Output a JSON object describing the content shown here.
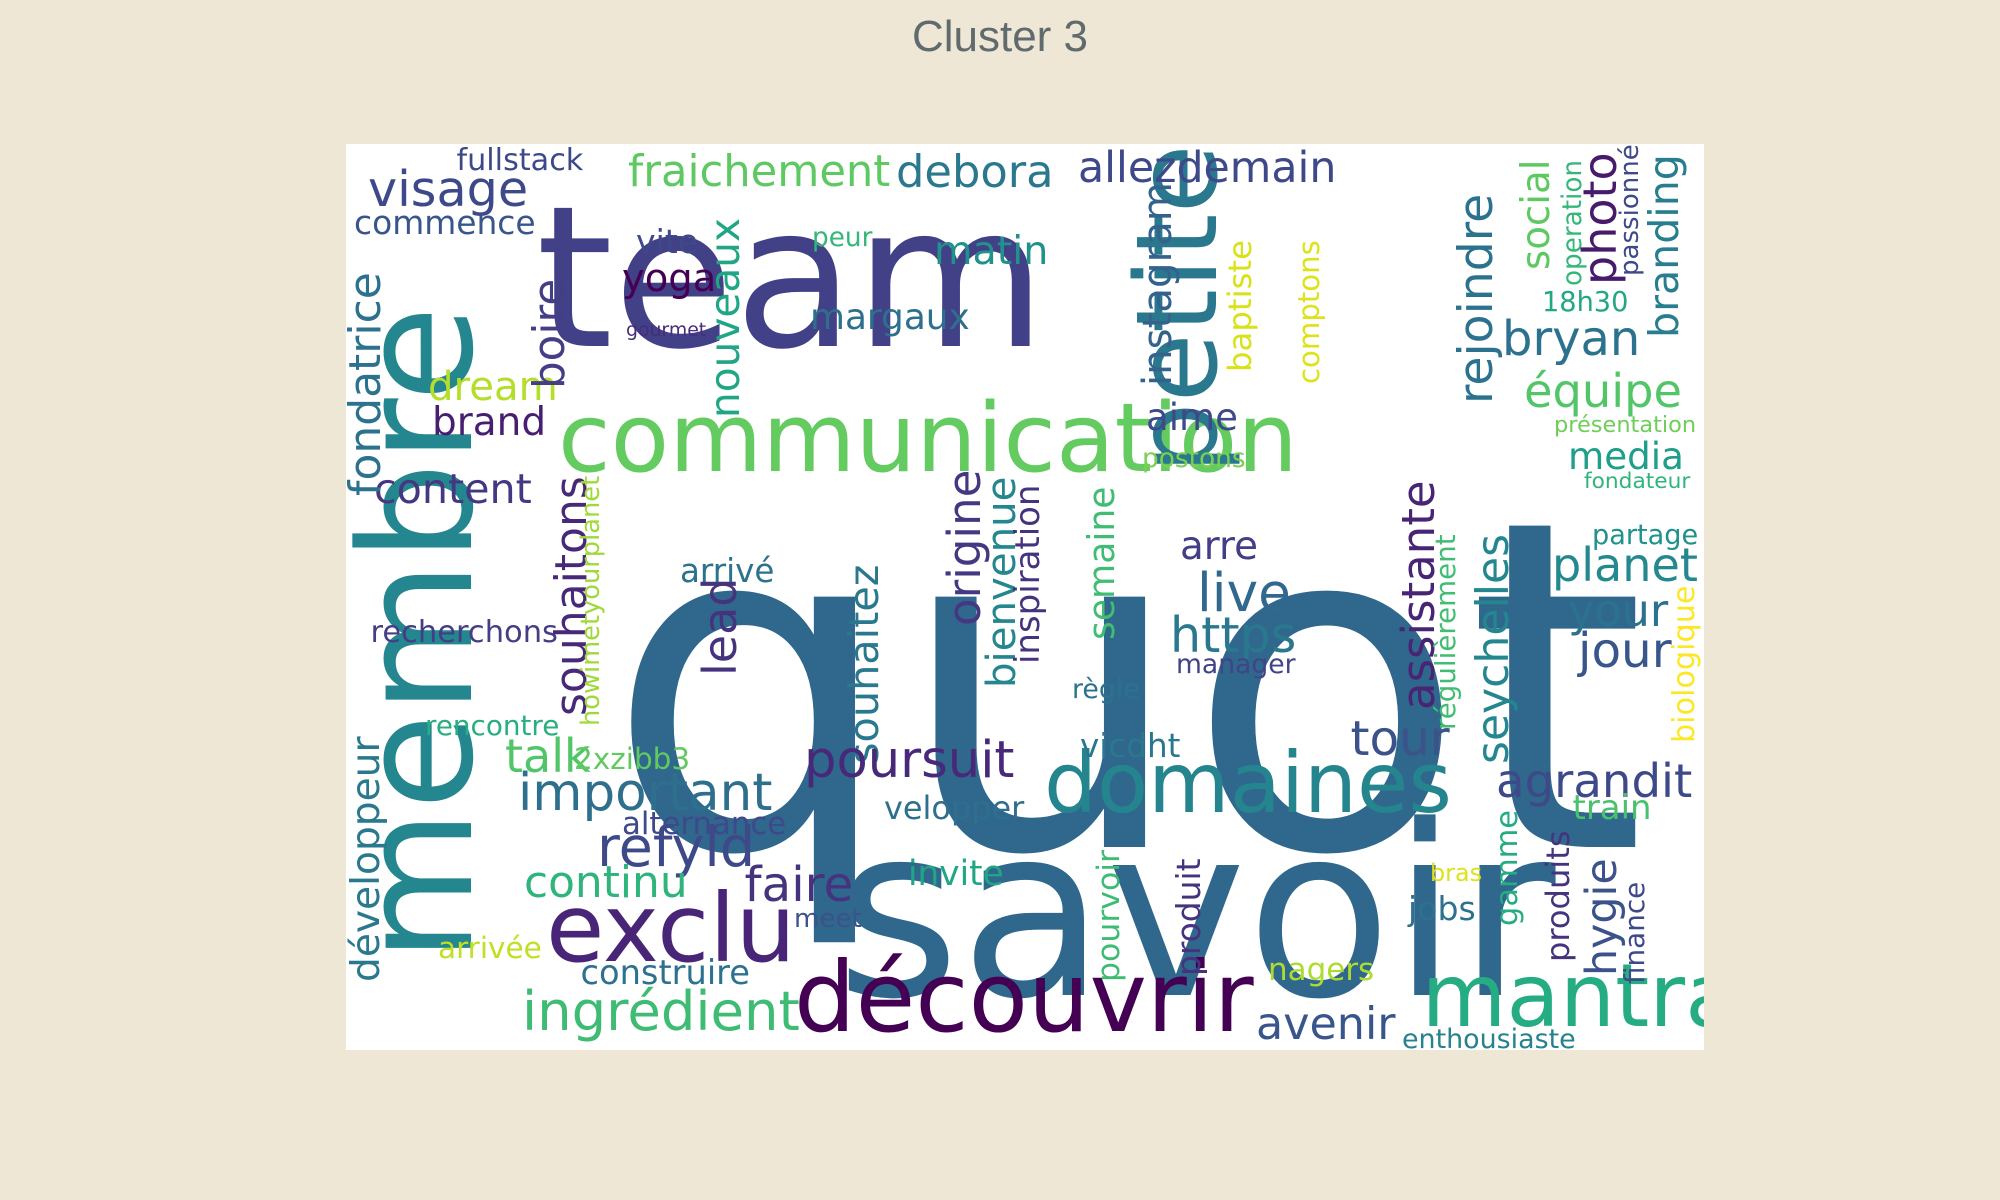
{
  "title": "Cluster 3",
  "palette": "viridis",
  "words": [
    {
      "text": "quot",
      "color": "#30678d"
    },
    {
      "text": "team",
      "color": "#424086"
    },
    {
      "text": "savoir",
      "color": "#30678d"
    },
    {
      "text": "membre",
      "color": "#24868e"
    },
    {
      "text": "communication",
      "color": "#63cb5f"
    },
    {
      "text": "petite",
      "color": "#2a788e"
    },
    {
      "text": "domaines",
      "color": "#25858e"
    },
    {
      "text": "découvrir",
      "color": "#440154"
    },
    {
      "text": "mantra",
      "color": "#25ac82"
    },
    {
      "text": "exclu",
      "color": "#482576"
    },
    {
      "text": "important",
      "color": "#2e6f8e"
    },
    {
      "text": "ingrédient",
      "color": "#3fbc73"
    },
    {
      "text": "fraichement",
      "color": "#5ec962"
    },
    {
      "text": "debora",
      "color": "#2a788e"
    },
    {
      "text": "allezdemain",
      "color": "#3e4989"
    },
    {
      "text": "visage",
      "color": "#3e4989"
    },
    {
      "text": "commence",
      "color": "#39568c"
    },
    {
      "text": "fullstack",
      "color": "#3e4989"
    },
    {
      "text": "vite",
      "color": "#3e4989"
    },
    {
      "text": "peur",
      "color": "#35b779"
    },
    {
      "text": "matin",
      "color": "#21918c"
    },
    {
      "text": "yoga",
      "color": "#440154"
    },
    {
      "text": "margaux",
      "color": "#2e6f8e"
    },
    {
      "text": "gourmet",
      "color": "#472d7b"
    },
    {
      "text": "dream",
      "color": "#b5de2b"
    },
    {
      "text": "brand",
      "color": "#481f70"
    },
    {
      "text": "content",
      "color": "#453781"
    },
    {
      "text": "instagram",
      "color": "#33638d"
    },
    {
      "text": "aime",
      "color": "#3e4989"
    },
    {
      "text": "postons",
      "color": "#7ad151"
    },
    {
      "text": "baptiste",
      "color": "#d8e219"
    },
    {
      "text": "comptons",
      "color": "#dde318"
    },
    {
      "text": "rejoindre",
      "color": "#2c728e"
    },
    {
      "text": "social",
      "color": "#5ec962"
    },
    {
      "text": "operation",
      "color": "#35b779"
    },
    {
      "text": "photo",
      "color": "#481a6c"
    },
    {
      "text": "passionné",
      "color": "#3e4989"
    },
    {
      "text": "branding",
      "color": "#287d8e"
    },
    {
      "text": "18h30",
      "color": "#22a785"
    },
    {
      "text": "bryan",
      "color": "#2c728e"
    },
    {
      "text": "équipe",
      "color": "#52c569"
    },
    {
      "text": "présentation",
      "color": "#6ece58"
    },
    {
      "text": "media",
      "color": "#1f9e89"
    },
    {
      "text": "fondateur",
      "color": "#2fb47c"
    },
    {
      "text": "partage",
      "color": "#21918c"
    },
    {
      "text": "planet",
      "color": "#23898e"
    },
    {
      "text": "your",
      "color": "#2c728e"
    },
    {
      "text": "jour",
      "color": "#39568c"
    },
    {
      "text": "biologique",
      "color": "#fde725"
    },
    {
      "text": "agrandit",
      "color": "#3e4989"
    },
    {
      "text": "train",
      "color": "#4ac16d"
    },
    {
      "text": "fondatrice",
      "color": "#2c728e"
    },
    {
      "text": "boire",
      "color": "#433e85"
    },
    {
      "text": "nouveaux",
      "color": "#21a685"
    },
    {
      "text": "souhaitons",
      "color": "#482878"
    },
    {
      "text": "howimetyourplanet",
      "color": "#a0da39"
    },
    {
      "text": "arrivé",
      "color": "#2c728e"
    },
    {
      "text": "lead",
      "color": "#46337e"
    },
    {
      "text": "souhaitez",
      "color": "#2a788e"
    },
    {
      "text": "origine",
      "color": "#453781"
    },
    {
      "text": "bienvenue",
      "color": "#24868e"
    },
    {
      "text": "inspiration",
      "color": "#46337e"
    },
    {
      "text": "semaine",
      "color": "#40bd72"
    },
    {
      "text": "arre",
      "color": "#433e85"
    },
    {
      "text": "live",
      "color": "#31688e"
    },
    {
      "text": "https",
      "color": "#2a788e"
    },
    {
      "text": "manager",
      "color": "#414487"
    },
    {
      "text": "règle",
      "color": "#2c728e"
    },
    {
      "text": "vicdht",
      "color": "#2a788e"
    },
    {
      "text": "assistante",
      "color": "#482475"
    },
    {
      "text": "régulièrement",
      "color": "#40bd72"
    },
    {
      "text": "seychelles",
      "color": "#24868e"
    },
    {
      "text": "tour",
      "color": "#3b528b"
    },
    {
      "text": "recherchons",
      "color": "#433e85"
    },
    {
      "text": "rencontre",
      "color": "#29af7f"
    },
    {
      "text": "talk",
      "color": "#52c569"
    },
    {
      "text": "2xzibb3",
      "color": "#60ca60"
    },
    {
      "text": "poursuit",
      "color": "#482878"
    },
    {
      "text": "velopper",
      "color": "#2e6f8e"
    },
    {
      "text": "alternance",
      "color": "#3e4989"
    },
    {
      "text": "refyld",
      "color": "#3e4989"
    },
    {
      "text": "continu",
      "color": "#2fb47c"
    },
    {
      "text": "faire",
      "color": "#46337e"
    },
    {
      "text": "invite",
      "color": "#21a685"
    },
    {
      "text": "meet",
      "color": "#3b528b"
    },
    {
      "text": "développeur",
      "color": "#2a788e"
    },
    {
      "text": "arrivée",
      "color": "#c2df23"
    },
    {
      "text": "construire",
      "color": "#2c728e"
    },
    {
      "text": "pourvoir",
      "color": "#3fbc73"
    },
    {
      "text": "produit",
      "color": "#46337e"
    },
    {
      "text": "nagers",
      "color": "#addc30"
    },
    {
      "text": "avenir",
      "color": "#39568c"
    },
    {
      "text": "enthousiaste",
      "color": "#26828e"
    },
    {
      "text": "gamme",
      "color": "#25ac82"
    },
    {
      "text": "produits",
      "color": "#46337e"
    },
    {
      "text": "hygie",
      "color": "#3b528b"
    },
    {
      "text": "finance",
      "color": "#3e4989"
    },
    {
      "text": "bras",
      "color": "#dde318"
    },
    {
      "text": "jobs",
      "color": "#2c728e"
    }
  ]
}
